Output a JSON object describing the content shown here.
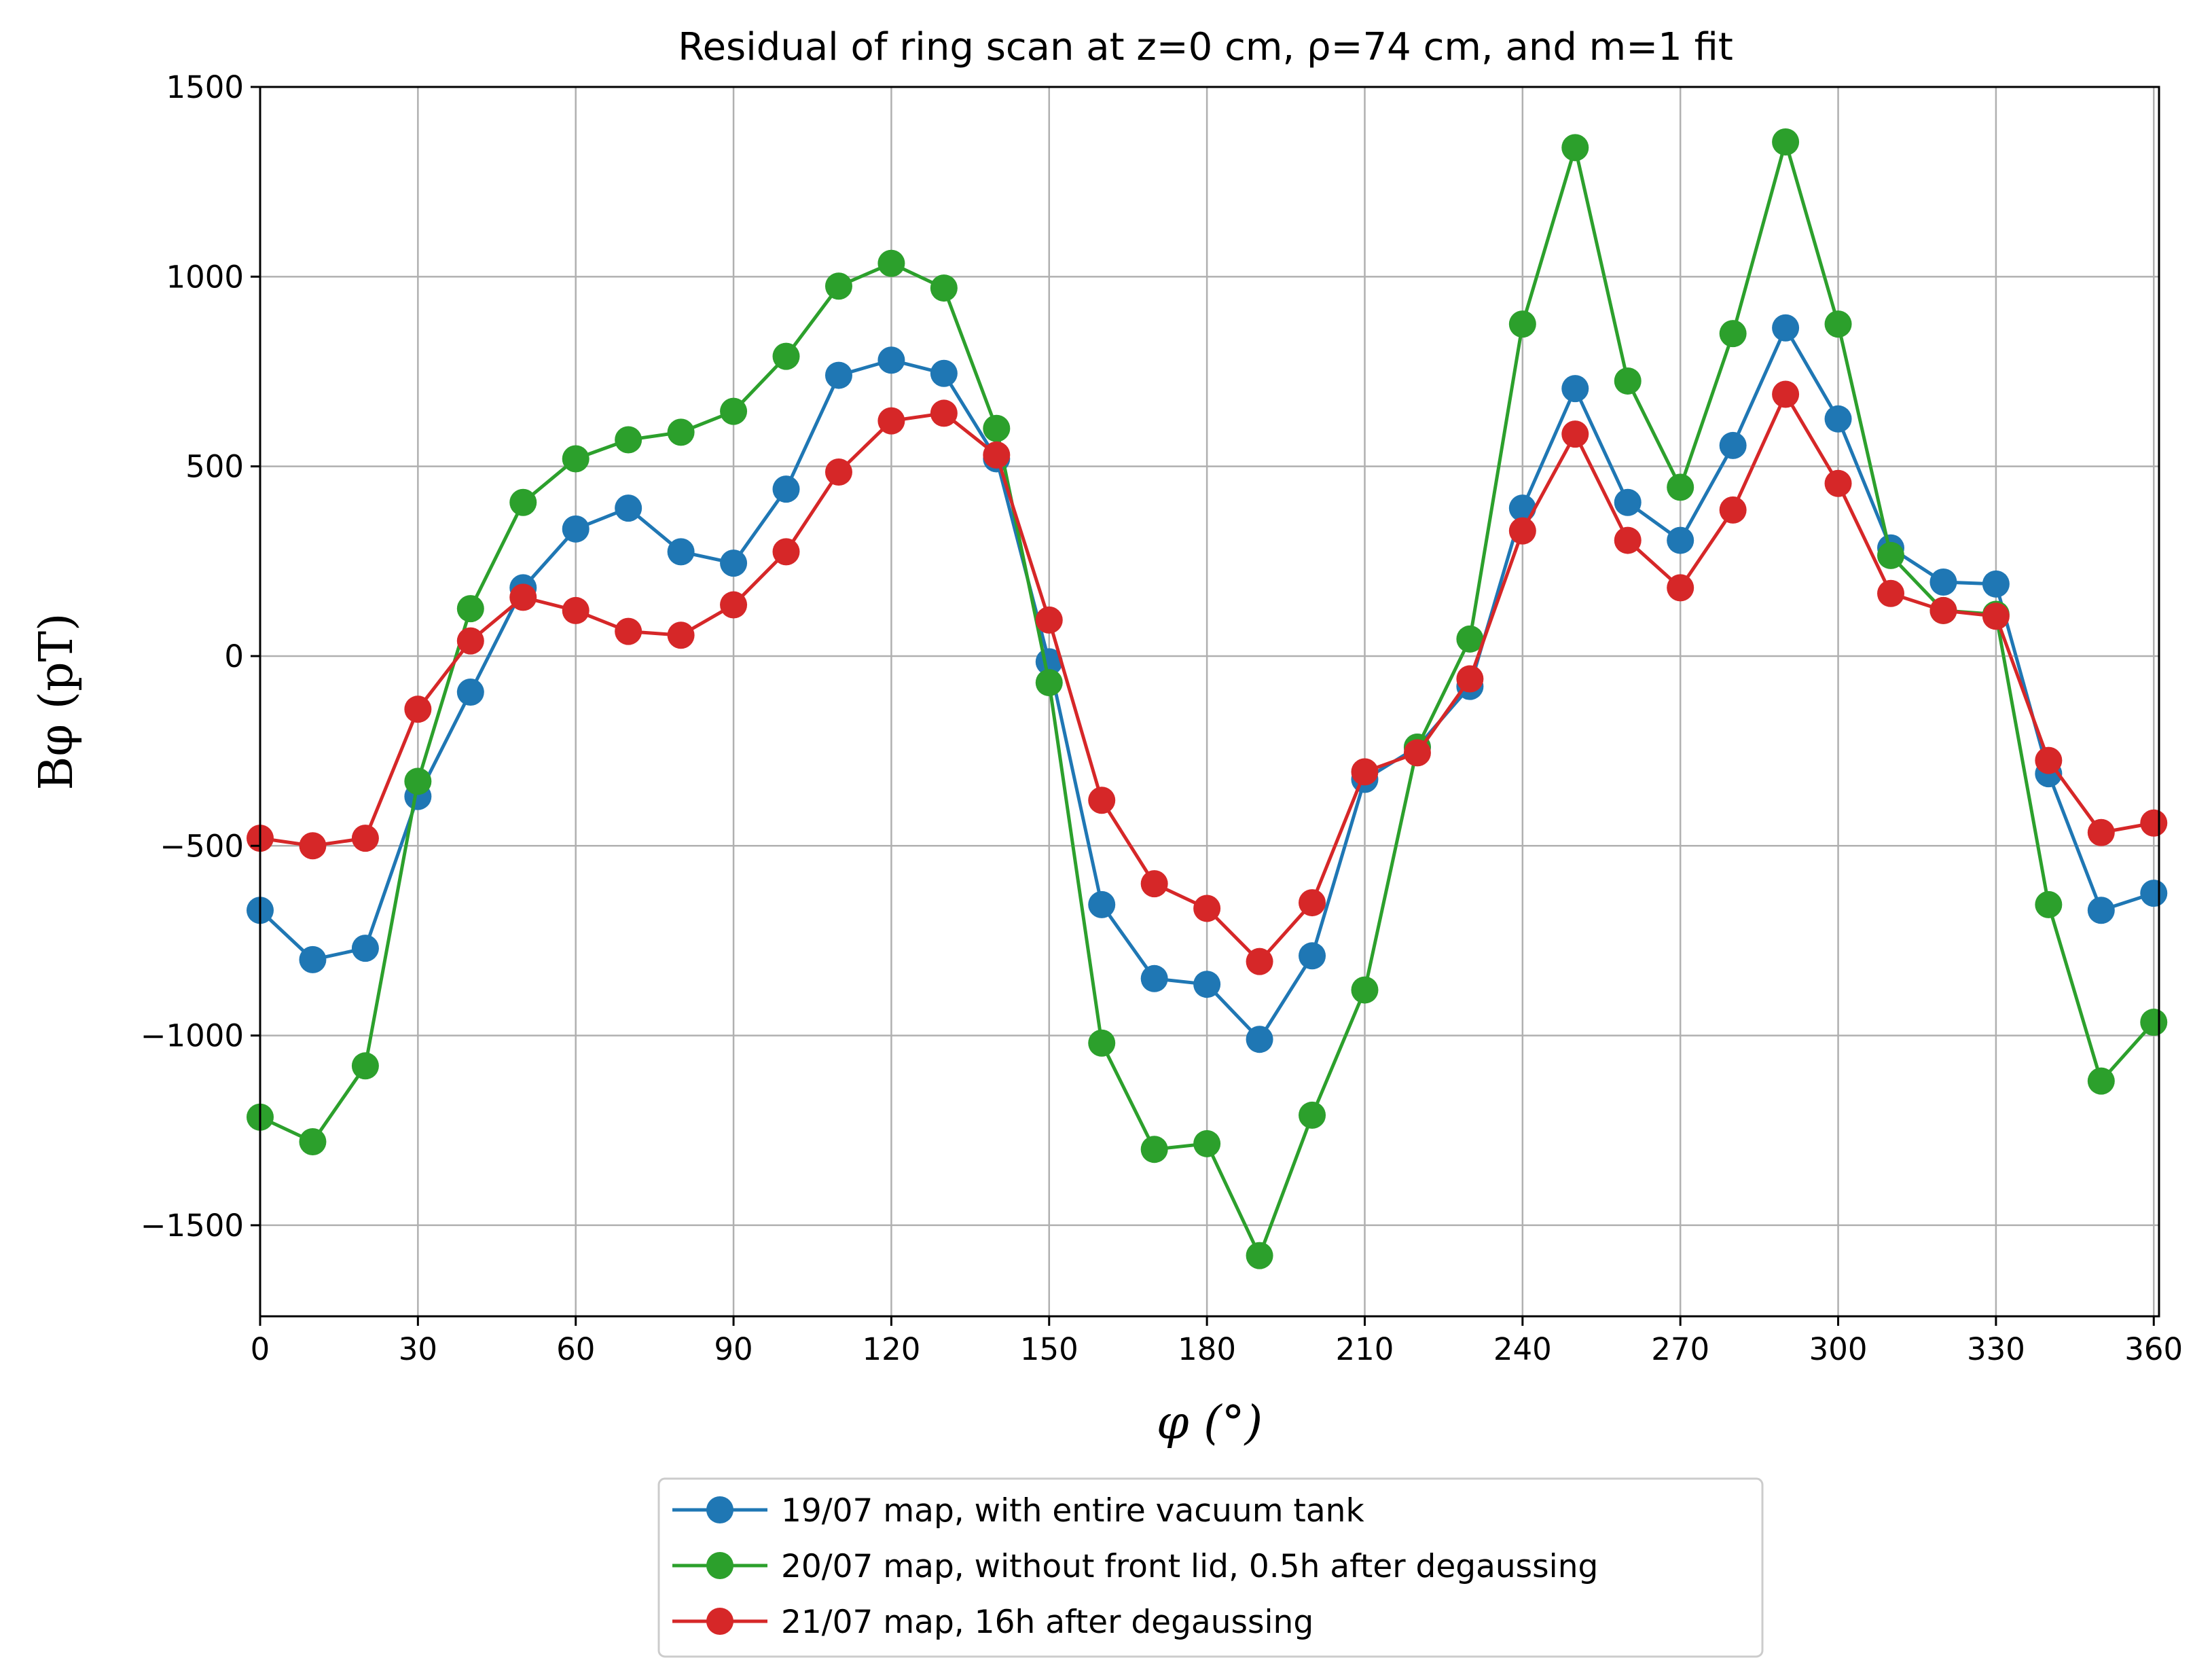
{
  "chart_data": {
    "type": "line",
    "title": "Residual of ring scan at z=0 cm, ρ=74 cm, and m=1 fit",
    "xlabel": "φ (°)",
    "ylabel": "Bφ (pT)",
    "xlim": [
      0,
      361
    ],
    "ylim": [
      -1740,
      1500
    ],
    "xticks": [
      0,
      30,
      60,
      90,
      120,
      150,
      180,
      210,
      240,
      270,
      300,
      330,
      360
    ],
    "yticks": [
      1500,
      1000,
      500,
      0,
      -500,
      -1000,
      -1500
    ],
    "ytick_labels": [
      "1500",
      "1000",
      "500",
      "0",
      "−500",
      "−1000",
      "−1500"
    ],
    "grid": true,
    "legend_position": "below plot, center",
    "x": [
      0,
      10,
      20,
      30,
      40,
      50,
      60,
      70,
      80,
      90,
      100,
      110,
      120,
      130,
      140,
      150,
      160,
      170,
      180,
      190,
      200,
      210,
      220,
      230,
      240,
      250,
      260,
      270,
      280,
      290,
      300,
      310,
      320,
      330,
      340,
      350,
      360
    ],
    "series": [
      {
        "name": "19/07 map, with entire vacuum tank",
        "color": "#1f77b4",
        "values": [
          -670,
          -800,
          -770,
          -370,
          -95,
          180,
          335,
          390,
          275,
          245,
          440,
          740,
          780,
          745,
          520,
          -15,
          -655,
          -850,
          -865,
          -1010,
          -790,
          -325,
          -240,
          -80,
          390,
          705,
          405,
          305,
          555,
          865,
          625,
          285,
          195,
          190,
          -310,
          -670,
          -625
        ]
      },
      {
        "name": "20/07 map, without front lid, 0.5h after degaussing",
        "color": "#2ca02c",
        "values": [
          -1215,
          -1280,
          -1080,
          -330,
          125,
          405,
          520,
          570,
          590,
          645,
          790,
          975,
          1035,
          970,
          600,
          -70,
          -1020,
          -1300,
          -1285,
          -1580,
          -1210,
          -880,
          -240,
          45,
          875,
          1340,
          725,
          445,
          850,
          1355,
          875,
          265,
          120,
          110,
          -655,
          -1120,
          -965
        ]
      },
      {
        "name": "21/07 map, 16h after degaussing",
        "color": "#d62728",
        "values": [
          -480,
          -500,
          -480,
          -140,
          40,
          155,
          120,
          65,
          55,
          135,
          275,
          485,
          620,
          640,
          530,
          95,
          -380,
          -600,
          -665,
          -805,
          -650,
          -305,
          -255,
          -60,
          330,
          585,
          305,
          180,
          385,
          690,
          455,
          165,
          120,
          105,
          -275,
          -465,
          -440
        ]
      }
    ]
  }
}
